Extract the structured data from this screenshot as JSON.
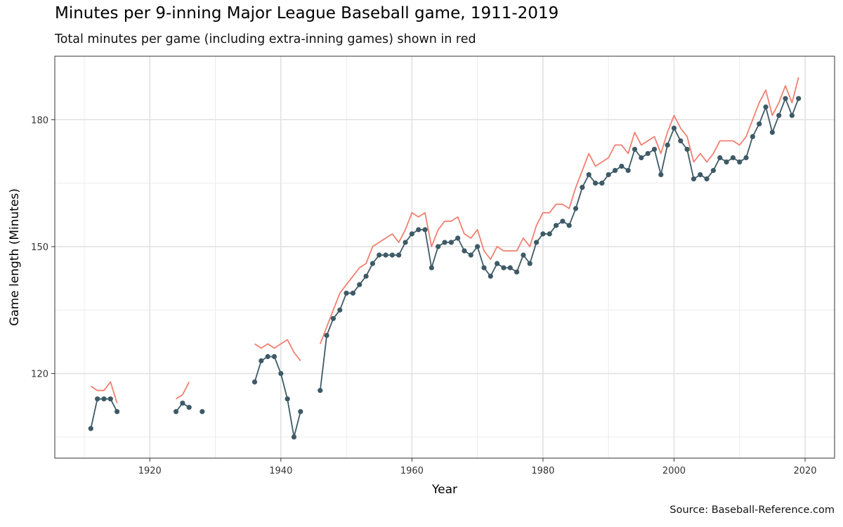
{
  "chart_data": {
    "type": "line",
    "title": "Minutes per 9-inning Major League Baseball game, 1911-2019",
    "subtitle": "Total minutes per game (including extra-inning games) shown in red",
    "caption": "Source: Baseball-Reference.com",
    "xlabel": "Year",
    "ylabel": "Game length (Minutes)",
    "xlim": [
      1905.5,
      2024.5
    ],
    "ylim": [
      100,
      195
    ],
    "x_ticks": [
      1920,
      1940,
      1960,
      1980,
      2000,
      2020
    ],
    "y_ticks": [
      120,
      150,
      180
    ],
    "grid": true,
    "series": [
      {
        "style": "line+points",
        "color": "#3d5a66",
        "points": [
          [
            1911,
            107
          ],
          [
            1912,
            114
          ],
          [
            1913,
            114
          ],
          [
            1914,
            114
          ],
          [
            1915,
            111
          ],
          [
            1924,
            111
          ],
          [
            1925,
            113
          ],
          [
            1926,
            112
          ],
          [
            1928,
            111
          ],
          [
            1936,
            118
          ],
          [
            1937,
            123
          ],
          [
            1938,
            124
          ],
          [
            1939,
            124
          ],
          [
            1940,
            120
          ],
          [
            1941,
            114
          ],
          [
            1942,
            105
          ],
          [
            1943,
            111
          ],
          [
            1946,
            116
          ],
          [
            1947,
            129
          ],
          [
            1948,
            133
          ],
          [
            1949,
            135
          ],
          [
            1950,
            139
          ],
          [
            1951,
            139
          ],
          [
            1952,
            141
          ],
          [
            1953,
            143
          ],
          [
            1954,
            146
          ],
          [
            1955,
            148
          ],
          [
            1956,
            148
          ],
          [
            1957,
            148
          ],
          [
            1958,
            148
          ],
          [
            1959,
            151
          ],
          [
            1960,
            153
          ],
          [
            1961,
            154
          ],
          [
            1962,
            154
          ],
          [
            1963,
            145
          ],
          [
            1964,
            150
          ],
          [
            1965,
            151
          ],
          [
            1966,
            151
          ],
          [
            1967,
            152
          ],
          [
            1968,
            149
          ],
          [
            1969,
            148
          ],
          [
            1970,
            150
          ],
          [
            1971,
            145
          ],
          [
            1972,
            143
          ],
          [
            1973,
            146
          ],
          [
            1974,
            145
          ],
          [
            1975,
            145
          ],
          [
            1976,
            144
          ],
          [
            1977,
            148
          ],
          [
            1978,
            146
          ],
          [
            1979,
            151
          ],
          [
            1980,
            153
          ],
          [
            1981,
            153
          ],
          [
            1982,
            155
          ],
          [
            1983,
            156
          ],
          [
            1984,
            155
          ],
          [
            1985,
            159
          ],
          [
            1986,
            164
          ],
          [
            1987,
            167
          ],
          [
            1988,
            165
          ],
          [
            1989,
            165
          ],
          [
            1990,
            167
          ],
          [
            1991,
            168
          ],
          [
            1992,
            169
          ],
          [
            1993,
            168
          ],
          [
            1994,
            173
          ],
          [
            1995,
            171
          ],
          [
            1996,
            172
          ],
          [
            1997,
            173
          ],
          [
            1998,
            167
          ],
          [
            1999,
            174
          ],
          [
            2000,
            178
          ],
          [
            2001,
            175
          ],
          [
            2002,
            173
          ],
          [
            2003,
            166
          ],
          [
            2004,
            167
          ],
          [
            2005,
            166
          ],
          [
            2006,
            168
          ],
          [
            2007,
            171
          ],
          [
            2008,
            170
          ],
          [
            2009,
            171
          ],
          [
            2010,
            170
          ],
          [
            2011,
            171
          ],
          [
            2012,
            176
          ],
          [
            2013,
            179
          ],
          [
            2014,
            183
          ],
          [
            2015,
            177
          ],
          [
            2016,
            181
          ],
          [
            2017,
            185
          ],
          [
            2018,
            181
          ],
          [
            2019,
            185
          ]
        ]
      },
      {
        "style": "line",
        "color": "#f08070",
        "points": [
          [
            1911,
            117
          ],
          [
            1912,
            116
          ],
          [
            1913,
            116
          ],
          [
            1914,
            118
          ],
          [
            1915,
            113
          ],
          [
            1924,
            114
          ],
          [
            1925,
            115
          ],
          [
            1926,
            118
          ],
          [
            1936,
            127
          ],
          [
            1937,
            126
          ],
          [
            1938,
            127
          ],
          [
            1939,
            126
          ],
          [
            1940,
            127
          ],
          [
            1941,
            128
          ],
          [
            1942,
            125
          ],
          [
            1943,
            123
          ],
          [
            1946,
            127
          ],
          [
            1947,
            131
          ],
          [
            1948,
            135
          ],
          [
            1949,
            139
          ],
          [
            1950,
            141
          ],
          [
            1951,
            143
          ],
          [
            1952,
            145
          ],
          [
            1953,
            146
          ],
          [
            1954,
            150
          ],
          [
            1955,
            151
          ],
          [
            1956,
            152
          ],
          [
            1957,
            153
          ],
          [
            1958,
            151
          ],
          [
            1959,
            154
          ],
          [
            1960,
            158
          ],
          [
            1961,
            157
          ],
          [
            1962,
            158
          ],
          [
            1963,
            150
          ],
          [
            1964,
            154
          ],
          [
            1965,
            156
          ],
          [
            1966,
            156
          ],
          [
            1967,
            157
          ],
          [
            1968,
            153
          ],
          [
            1969,
            152
          ],
          [
            1970,
            154
          ],
          [
            1971,
            149
          ],
          [
            1972,
            147
          ],
          [
            1973,
            150
          ],
          [
            1974,
            149
          ],
          [
            1975,
            149
          ],
          [
            1976,
            149
          ],
          [
            1977,
            152
          ],
          [
            1978,
            150
          ],
          [
            1979,
            155
          ],
          [
            1980,
            158
          ],
          [
            1981,
            158
          ],
          [
            1982,
            160
          ],
          [
            1983,
            160
          ],
          [
            1984,
            159
          ],
          [
            1985,
            164
          ],
          [
            1986,
            168
          ],
          [
            1987,
            172
          ],
          [
            1988,
            169
          ],
          [
            1989,
            170
          ],
          [
            1990,
            171
          ],
          [
            1991,
            174
          ],
          [
            1992,
            174
          ],
          [
            1993,
            172
          ],
          [
            1994,
            177
          ],
          [
            1995,
            174
          ],
          [
            1996,
            175
          ],
          [
            1997,
            176
          ],
          [
            1998,
            172
          ],
          [
            1999,
            177
          ],
          [
            2000,
            181
          ],
          [
            2001,
            178
          ],
          [
            2002,
            176
          ],
          [
            2003,
            170
          ],
          [
            2004,
            172
          ],
          [
            2005,
            170
          ],
          [
            2006,
            172
          ],
          [
            2007,
            175
          ],
          [
            2008,
            175
          ],
          [
            2009,
            175
          ],
          [
            2010,
            174
          ],
          [
            2011,
            176
          ],
          [
            2012,
            180
          ],
          [
            2013,
            184
          ],
          [
            2014,
            187
          ],
          [
            2015,
            181
          ],
          [
            2016,
            184
          ],
          [
            2017,
            188
          ],
          [
            2018,
            184
          ],
          [
            2019,
            190
          ]
        ]
      }
    ]
  }
}
